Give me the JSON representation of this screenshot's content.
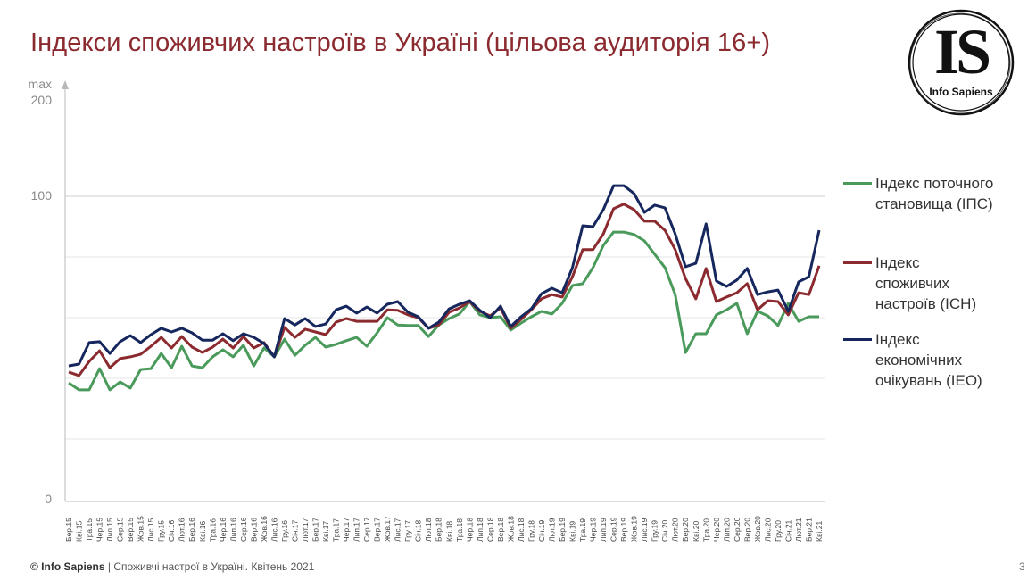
{
  "slide": {
    "title": "Індекси споживчих настроїв в Україні (цільова аудиторія 16+)",
    "logo": {
      "mark": "IS",
      "name": "Info Sapiens"
    },
    "footer": {
      "brand": "© Info Sapiens",
      "separator": " | ",
      "text": "Споживчі настрої в Україні. Квітень 2021"
    },
    "page_number": "3"
  },
  "axis": {
    "y_top_label_1": "max",
    "y_top_label_2": "200",
    "y_100": "100",
    "y_0": "0"
  },
  "legend": [
    {
      "label": "Індекс поточного становища (ІПС)",
      "color": "#4a9a5b"
    },
    {
      "label": "Індекс споживчих настроїв (ІСН)",
      "color": "#8b2a2f"
    },
    {
      "label": "Індекс економічних очікувань (ІЕО)",
      "color": "#16275e"
    }
  ],
  "chart_data": {
    "type": "line",
    "title": "Індекси споживчих настроїв в Україні (цільова аудиторія 16+)",
    "xlabel": "",
    "ylabel": "",
    "ylim": [
      0,
      100
    ],
    "y_axis_note": "max 200",
    "yticks": [
      0,
      100
    ],
    "grid": true,
    "gridline_values": [
      20,
      40,
      60,
      80,
      100
    ],
    "legend_position": "right",
    "categories": [
      "Бер.15",
      "Кві.15",
      "Тра.15",
      "Чер.15",
      "Лип.15",
      "Сер.15",
      "Вер.15",
      "Жов.15",
      "Лис.15",
      "Гру.15",
      "Січ.16",
      "Лют.16",
      "Бер.16",
      "Кві.16",
      "Тра.16",
      "Чер.16",
      "Лип.16",
      "Сер.16",
      "Вер.16",
      "Жов.16",
      "Лис.16",
      "Гру.16",
      "Січ.17",
      "Лют.17",
      "Бер.17",
      "Кві.17",
      "Тра.17",
      "Чер.17",
      "Лип.17",
      "Сер.17",
      "Вер.17",
      "Жов.17",
      "Лис.17",
      "Гру.17",
      "Січ.18",
      "Лют.18",
      "Бер.18",
      "Кві.18",
      "Тра.18",
      "Чер.18",
      "Лип.18",
      "Сер.18",
      "Вер.18",
      "Жов.18",
      "Лис.18",
      "Гру.18",
      "Січ.19",
      "Лют.19",
      "Бер.19",
      "Кві.19",
      "Тра.19",
      "Чер.19",
      "Лип.19",
      "Сер.19",
      "Вер.19",
      "Жов.19",
      "Лис.19",
      "Гру.19",
      "Січ.20",
      "Лют.20",
      "Бер.20",
      "Кві.20",
      "Тра.20",
      "Чер.20",
      "Лип.20",
      "Сер.20",
      "Вер.20",
      "Жов.20",
      "Лис.20",
      "Гру.20",
      "Січ.21",
      "Лют.21",
      "Бер.21",
      "Кві.21"
    ],
    "series": [
      {
        "name": "Індекс поточного становища (ІПС)",
        "color": "#4a9a5b",
        "values": [
          38.5,
          36.2,
          36.2,
          43.2,
          36.2,
          38.8,
          36.8,
          42.9,
          43.2,
          48.2,
          43.5,
          50.6,
          44.1,
          43.5,
          47.1,
          49.4,
          47.1,
          50.9,
          44.1,
          50,
          47.1,
          52.9,
          47.6,
          50.9,
          53.5,
          50.3,
          51.2,
          52.4,
          53.5,
          50.6,
          55,
          60,
          57.6,
          57.4,
          57.4,
          53.8,
          57.6,
          59.7,
          61.2,
          65.3,
          60.9,
          60,
          60.3,
          55.9,
          58.2,
          60.3,
          62.1,
          61.2,
          64.7,
          70.6,
          71.2,
          76.5,
          83.8,
          88.2,
          88.2,
          87.4,
          85.3,
          80.9,
          76.5,
          67.6,
          48.5,
          54.7,
          54.7,
          60.9,
          62.6,
          64.7,
          54.7,
          62.1,
          60.6,
          57.4,
          64.7,
          58.8,
          60.3,
          60.3
        ]
      },
      {
        "name": "Індекс споживчих настроїв (ІСН)",
        "color": "#8b2a2f",
        "values": [
          42.1,
          40.9,
          45.6,
          49.1,
          43.5,
          46.5,
          47.1,
          47.9,
          50.6,
          53.5,
          50,
          53.8,
          50.3,
          48.5,
          50.3,
          52.9,
          50,
          53.8,
          50,
          51.8,
          47.1,
          56.8,
          53.5,
          56.2,
          55.3,
          54.4,
          58.5,
          59.7,
          58.8,
          58.8,
          58.8,
          62.6,
          62.4,
          60.9,
          60,
          56.5,
          57.6,
          61.8,
          63.2,
          65.3,
          62.1,
          60.6,
          63.2,
          56.5,
          59.4,
          62.6,
          66.2,
          67.6,
          66.8,
          73.5,
          82.4,
          82.4,
          87.6,
          95.9,
          97.4,
          95.6,
          91.8,
          91.8,
          88.8,
          82.4,
          72.9,
          66.2,
          76.2,
          65.3,
          66.8,
          68.2,
          71.2,
          62.6,
          65.6,
          65.3,
          60.9,
          68.2,
          67.6,
          77.1
        ]
      },
      {
        "name": "Індекс економічних очікувань (ІЕО)",
        "color": "#16275e",
        "values": [
          44.1,
          44.7,
          51.8,
          52.1,
          48.2,
          52.1,
          54.1,
          51.8,
          54.4,
          56.5,
          55.3,
          56.5,
          55,
          52.6,
          52.6,
          54.7,
          52.4,
          54.7,
          53.5,
          51.5,
          47.1,
          59.7,
          57.6,
          59.7,
          57.1,
          57.9,
          62.6,
          63.8,
          61.5,
          63.5,
          61.5,
          64.4,
          65.3,
          61.8,
          60.3,
          56.5,
          58.5,
          62.9,
          64.4,
          65.6,
          62.4,
          60,
          63.8,
          57.1,
          60.3,
          62.9,
          67.9,
          69.7,
          68.2,
          76.5,
          90.3,
          90,
          95.6,
          103.5,
          103.5,
          100.9,
          94.7,
          97.1,
          96.2,
          87.6,
          76.8,
          77.9,
          90.9,
          72.1,
          70.3,
          72.4,
          76.2,
          67.6,
          68.5,
          69.1,
          62.1,
          71.8,
          73.5,
          88.8
        ]
      }
    ]
  }
}
